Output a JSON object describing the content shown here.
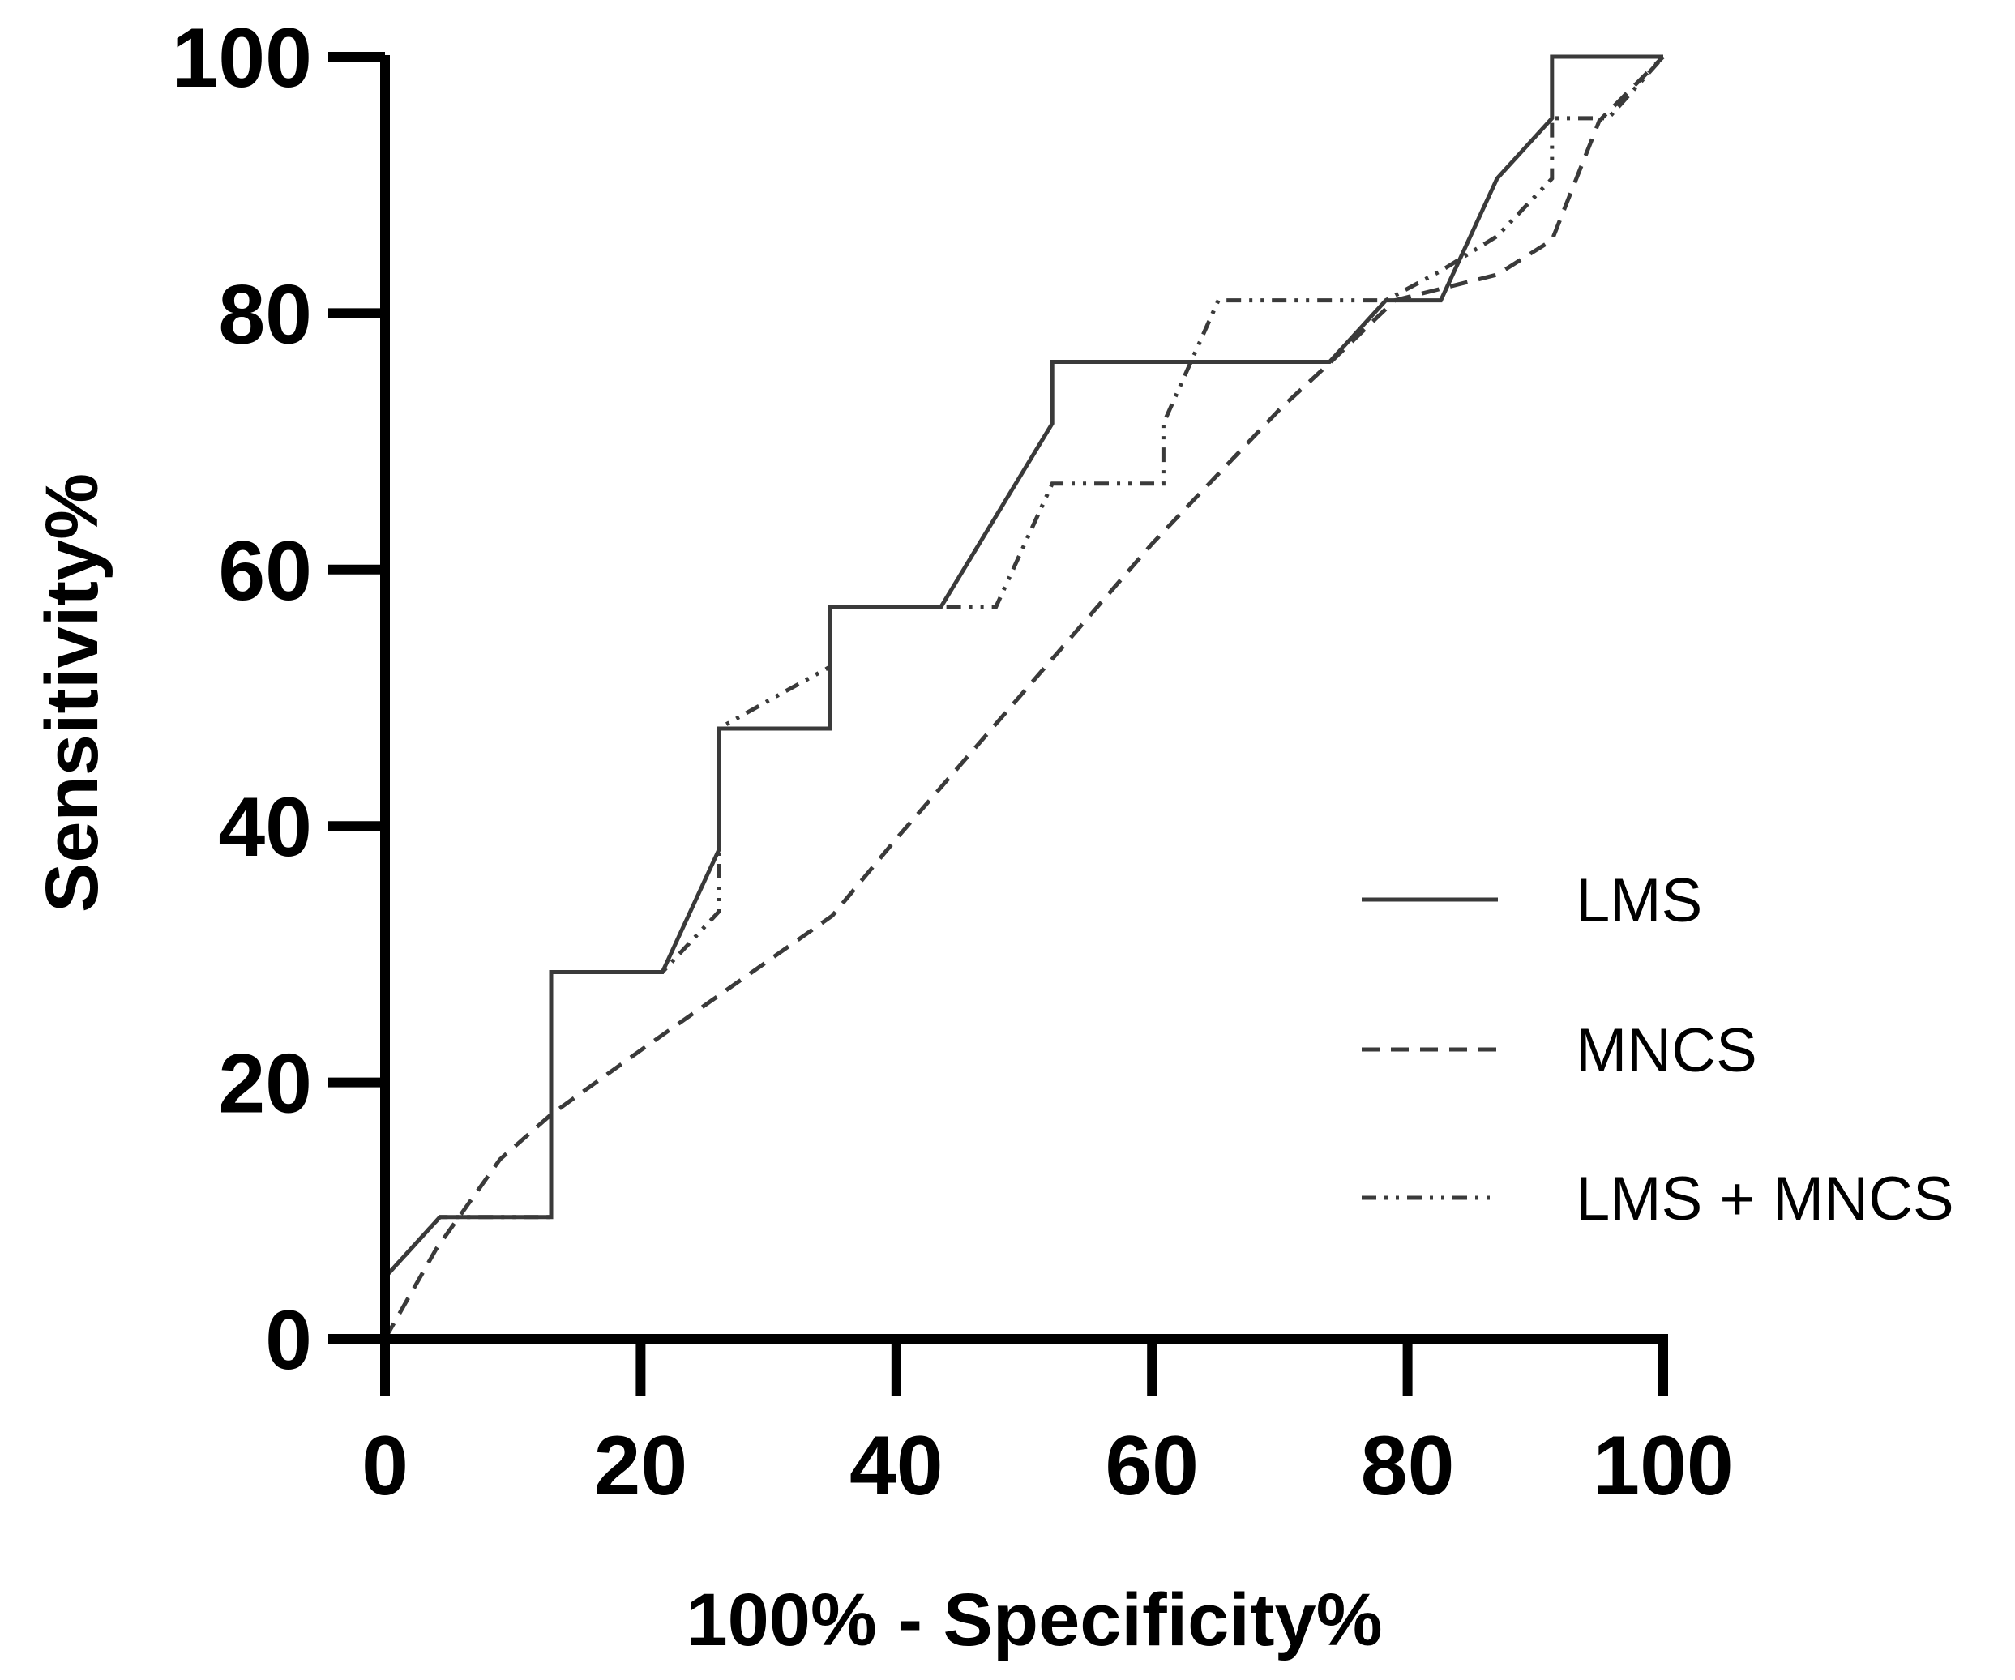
{
  "chart_data": {
    "type": "line",
    "title": "",
    "xlabel": "100% - Specificity%",
    "ylabel": "Sensitivity%",
    "xlim": [
      0,
      100
    ],
    "ylim": [
      0,
      100
    ],
    "xticks": [
      "0",
      "20",
      "40",
      "60",
      "80",
      "100"
    ],
    "yticks": [
      "0",
      "20",
      "40",
      "60",
      "80",
      "100"
    ],
    "grid": false,
    "legend_position": "right",
    "series": [
      {
        "name": "LMS",
        "style": "solid",
        "color": "#3a3a3a",
        "x": [
          0,
          0,
          4.3,
          13.0,
          13.0,
          21.7,
          26.1,
          26.1,
          34.8,
          34.8,
          43.5,
          52.2,
          52.2,
          73.9,
          78.3,
          82.6,
          87.0,
          91.3,
          91.3,
          100
        ],
        "y": [
          0,
          4.8,
          9.5,
          9.5,
          28.6,
          28.6,
          38.1,
          47.6,
          47.6,
          57.1,
          57.1,
          71.4,
          76.2,
          76.2,
          81.0,
          81.0,
          90.5,
          95.2,
          100,
          100
        ]
      },
      {
        "name": "MNCS",
        "style": "dashed",
        "color": "#3a3a3a",
        "x": [
          0,
          4,
          9,
          13,
          20,
          30,
          35,
          40,
          50,
          60,
          70,
          74,
          79,
          87,
          91.3,
          95,
          100
        ],
        "y": [
          0,
          7,
          14,
          17.5,
          22.5,
          29.5,
          33,
          39,
          50.5,
          62,
          72.5,
          76.2,
          81,
          83,
          85.7,
          95,
          100
        ]
      },
      {
        "name": "LMS + MNCS",
        "style": "dash-dot-dot",
        "color": "#3a3a3a",
        "x": [
          0,
          0,
          4.3,
          13.0,
          13.0,
          21.7,
          26.1,
          26.1,
          30.4,
          34.8,
          34.8,
          47.8,
          52.2,
          52.2,
          60.9,
          60.9,
          65.2,
          78.3,
          82.6,
          87.0,
          91.3,
          91.3,
          95.7,
          100
        ],
        "y": [
          0,
          4.8,
          9.5,
          9.5,
          28.6,
          28.6,
          33.3,
          47.6,
          50.0,
          52.4,
          57.1,
          57.1,
          66.7,
          66.7,
          66.7,
          71.4,
          81.0,
          81.0,
          83.3,
          86.0,
          90.5,
          95.2,
          95.2,
          100
        ]
      }
    ]
  }
}
